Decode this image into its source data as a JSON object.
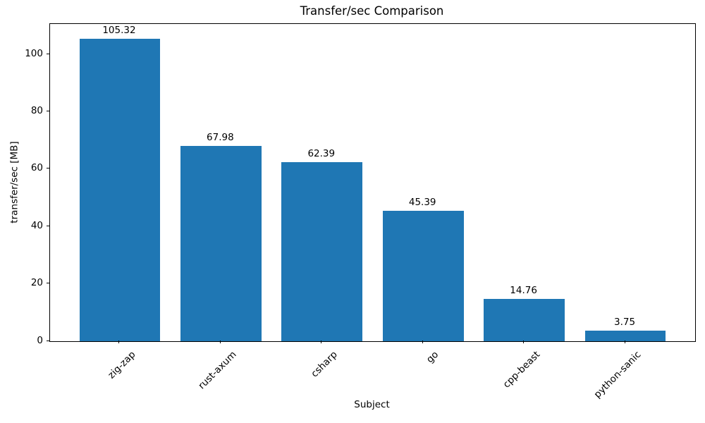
{
  "chart_data": {
    "type": "bar",
    "title": "Transfer/sec Comparison",
    "xlabel": "Subject",
    "ylabel": "transfer/sec [MB]",
    "categories": [
      "zig-zap",
      "rust-axum",
      "csharp",
      "go",
      "cpp-beast",
      "python-sanic"
    ],
    "values": [
      105.32,
      67.98,
      62.39,
      45.39,
      14.76,
      3.75
    ],
    "value_labels": [
      "105.32",
      "67.98",
      "62.39",
      "45.39",
      "14.76",
      "3.75"
    ],
    "yticks": [
      0,
      20,
      40,
      60,
      80,
      100
    ],
    "ylim": [
      0,
      110.59
    ],
    "bar_color": "#1f77b4",
    "axis_color": "#000000",
    "text_color": "#000000",
    "grid": false,
    "legend_position": "none",
    "xtick_rotation_deg": 45
  }
}
